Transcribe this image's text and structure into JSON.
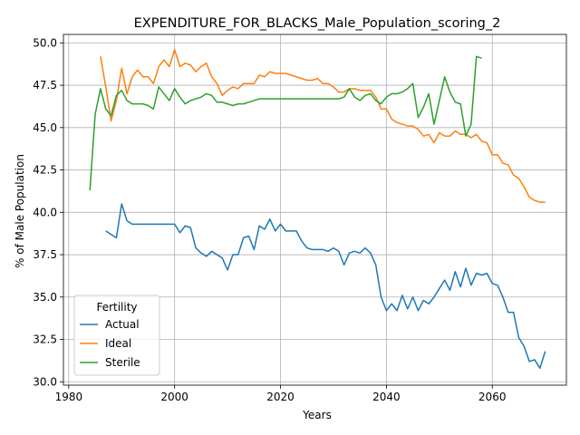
{
  "chart_data": {
    "type": "line",
    "title": "EXPENDITURE_FOR_BLACKS_Male_Population_scoring_2",
    "xlabel": "Years",
    "ylabel": "% of Male Population",
    "xlim": [
      1979,
      2074
    ],
    "ylim": [
      29.8,
      50.5
    ],
    "xticks": [
      1980,
      2000,
      2020,
      2040,
      2060
    ],
    "yticks": [
      30.0,
      32.5,
      35.0,
      37.5,
      40.0,
      42.5,
      45.0,
      47.5,
      50.0
    ],
    "grid": true,
    "legend": {
      "title": "Fertility",
      "placement": "lower-left"
    },
    "series": [
      {
        "name": "Actual",
        "color": "#1f77b4",
        "x": [
          1987,
          1988,
          1989,
          1990,
          1991,
          1992,
          1993,
          1994,
          1995,
          1996,
          1997,
          1998,
          1999,
          2000,
          2001,
          2002,
          2003,
          2004,
          2005,
          2006,
          2007,
          2008,
          2009,
          2010,
          2011,
          2012,
          2013,
          2014,
          2015,
          2016,
          2017,
          2018,
          2019,
          2020,
          2021,
          2022,
          2023,
          2024,
          2025,
          2026,
          2027,
          2028,
          2029,
          2030,
          2031,
          2032,
          2033,
          2034,
          2035,
          2036,
          2037,
          2038,
          2039,
          2040,
          2041,
          2042,
          2043,
          2044,
          2045,
          2046,
          2047,
          2048,
          2049,
          2050,
          2051,
          2052,
          2053,
          2054,
          2055,
          2056,
          2057,
          2058,
          2059,
          2060,
          2061,
          2062,
          2063,
          2064,
          2065,
          2066,
          2067,
          2068,
          2069,
          2070
        ],
        "y": [
          38.9,
          38.7,
          38.5,
          40.5,
          39.5,
          39.3,
          39.3,
          39.3,
          39.3,
          39.3,
          39.3,
          39.3,
          39.3,
          39.3,
          38.8,
          39.2,
          39.1,
          37.9,
          37.6,
          37.4,
          37.7,
          37.5,
          37.3,
          36.6,
          37.5,
          37.5,
          38.5,
          38.6,
          37.8,
          39.2,
          39.0,
          39.6,
          38.9,
          39.3,
          38.9,
          38.9,
          38.9,
          38.3,
          37.9,
          37.8,
          37.8,
          37.8,
          37.7,
          37.9,
          37.7,
          36.9,
          37.6,
          37.7,
          37.6,
          37.9,
          37.6,
          36.9,
          35.0,
          34.2,
          34.6,
          34.2,
          35.1,
          34.3,
          35.0,
          34.2,
          34.8,
          34.6,
          35.0,
          35.5,
          36.0,
          35.4,
          36.5,
          35.6,
          36.7,
          35.7,
          36.4,
          36.3,
          36.4,
          35.8,
          35.7,
          35.0,
          34.1,
          34.1,
          32.6,
          32.1,
          31.2,
          31.3,
          30.8,
          31.8
        ]
      },
      {
        "name": "Ideal",
        "color": "#ff7f0e",
        "x": [
          1986,
          1987,
          1988,
          1989,
          1990,
          1991,
          1992,
          1993,
          1994,
          1995,
          1996,
          1997,
          1998,
          1999,
          2000,
          2001,
          2002,
          2003,
          2004,
          2005,
          2006,
          2007,
          2008,
          2009,
          2010,
          2011,
          2012,
          2013,
          2014,
          2015,
          2016,
          2017,
          2018,
          2019,
          2020,
          2021,
          2022,
          2023,
          2024,
          2025,
          2026,
          2027,
          2028,
          2029,
          2030,
          2031,
          2032,
          2033,
          2034,
          2035,
          2036,
          2037,
          2038,
          2039,
          2040,
          2041,
          2042,
          2043,
          2044,
          2045,
          2046,
          2047,
          2048,
          2049,
          2050,
          2051,
          2052,
          2053,
          2054,
          2055,
          2056,
          2057,
          2058,
          2059,
          2060,
          2061,
          2062,
          2063,
          2064,
          2065,
          2066,
          2067,
          2068,
          2069,
          2070
        ],
        "y": [
          49.2,
          47.4,
          45.4,
          46.6,
          48.5,
          47.0,
          48.0,
          48.4,
          48.0,
          48.0,
          47.6,
          48.6,
          49.0,
          48.6,
          49.6,
          48.6,
          48.8,
          48.7,
          48.3,
          48.6,
          48.8,
          48.0,
          47.6,
          46.9,
          47.2,
          47.4,
          47.3,
          47.6,
          47.6,
          47.6,
          48.1,
          48.0,
          48.3,
          48.2,
          48.2,
          48.2,
          48.1,
          48.0,
          47.9,
          47.8,
          47.8,
          47.9,
          47.6,
          47.6,
          47.4,
          47.1,
          47.1,
          47.3,
          47.3,
          47.2,
          47.2,
          47.2,
          46.8,
          46.1,
          46.1,
          45.5,
          45.3,
          45.2,
          45.1,
          45.1,
          44.9,
          44.5,
          44.6,
          44.1,
          44.7,
          44.5,
          44.5,
          44.8,
          44.6,
          44.6,
          44.4,
          44.6,
          44.2,
          44.1,
          43.4,
          43.4,
          42.9,
          42.8,
          42.2,
          42.0,
          41.5,
          40.9,
          40.7,
          40.6,
          40.6
        ]
      },
      {
        "name": "Sterile",
        "color": "#2ca02c",
        "x": [
          1984,
          1985,
          1986,
          1987,
          1988,
          1989,
          1990,
          1991,
          1992,
          1993,
          1994,
          1995,
          1996,
          1997,
          1998,
          1999,
          2000,
          2001,
          2002,
          2003,
          2004,
          2005,
          2006,
          2007,
          2008,
          2009,
          2010,
          2011,
          2012,
          2013,
          2014,
          2015,
          2016,
          2017,
          2018,
          2019,
          2020,
          2021,
          2022,
          2023,
          2024,
          2025,
          2026,
          2027,
          2028,
          2029,
          2030,
          2031,
          2032,
          2033,
          2034,
          2035,
          2036,
          2037,
          2038,
          2039,
          2040,
          2041,
          2042,
          2043,
          2044,
          2045,
          2046,
          2047,
          2048,
          2049,
          2050,
          2051,
          2052,
          2053,
          2054,
          2055,
          2056,
          2057,
          2058
        ],
        "y": [
          41.3,
          45.8,
          47.3,
          46.1,
          45.7,
          46.9,
          47.2,
          46.6,
          46.4,
          46.4,
          46.4,
          46.3,
          46.1,
          47.4,
          47.0,
          46.6,
          47.3,
          46.8,
          46.4,
          46.6,
          46.7,
          46.8,
          47.0,
          46.9,
          46.5,
          46.5,
          46.4,
          46.3,
          46.4,
          46.4,
          46.5,
          46.6,
          46.7,
          46.7,
          46.7,
          46.7,
          46.7,
          46.7,
          46.7,
          46.7,
          46.7,
          46.7,
          46.7,
          46.7,
          46.7,
          46.7,
          46.7,
          46.7,
          46.8,
          47.3,
          46.8,
          46.6,
          46.9,
          47.0,
          46.6,
          46.4,
          46.8,
          47.0,
          47.0,
          47.1,
          47.3,
          47.6,
          45.6,
          46.2,
          47.0,
          45.2,
          46.6,
          48.0,
          47.1,
          46.5,
          46.4,
          44.5,
          45.2,
          49.2,
          49.1
        ]
      }
    ]
  }
}
